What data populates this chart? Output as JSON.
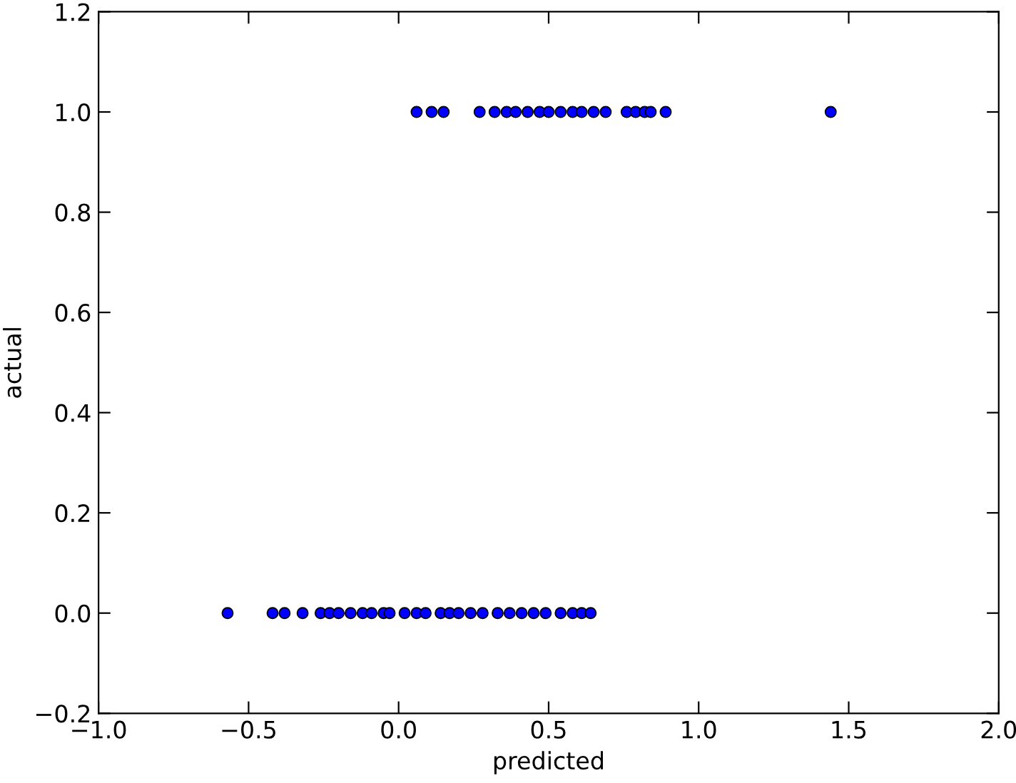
{
  "chart_data": {
    "type": "scatter",
    "xlabel": "predicted",
    "ylabel": "actual",
    "series": [
      {
        "color": "#0000ff",
        "x": [
          0.06,
          0.11,
          0.15,
          0.27,
          0.32,
          0.36,
          0.39,
          0.43,
          0.47,
          0.5,
          0.54,
          0.58,
          0.61,
          0.65,
          0.69,
          0.76,
          0.79,
          0.82,
          0.84,
          0.89,
          1.44
        ],
        "values": [
          1,
          1,
          1,
          1,
          1,
          1,
          1,
          1,
          1,
          1,
          1,
          1,
          1,
          1,
          1,
          1,
          1,
          1,
          1,
          1,
          1
        ]
      },
      {
        "color": "#0000ff",
        "x": [
          -0.57,
          -0.42,
          -0.38,
          -0.32,
          -0.26,
          -0.23,
          -0.2,
          -0.16,
          -0.12,
          -0.09,
          -0.05,
          -0.03,
          0.02,
          0.06,
          0.09,
          0.14,
          0.17,
          0.2,
          0.24,
          0.28,
          0.33,
          0.37,
          0.41,
          0.45,
          0.49,
          0.54,
          0.58,
          0.61,
          0.64
        ],
        "values": [
          0,
          0,
          0,
          0,
          0,
          0,
          0,
          0,
          0,
          0,
          0,
          0,
          0,
          0,
          0,
          0,
          0,
          0,
          0,
          0,
          0,
          0,
          0,
          0,
          0,
          0,
          0,
          0,
          0
        ]
      }
    ],
    "xlim": [
      -1.0,
      2.0
    ],
    "xticks": [
      {
        "value": -1,
        "label": "−1.0"
      },
      -0.5,
      {
        "value": 0,
        "label": "0.0"
      },
      0.5,
      {
        "value": 1,
        "label": "1.0"
      },
      1.5,
      {
        "value": 2,
        "label": "2.0"
      }
    ],
    "ylim": [
      -0.2,
      1.2
    ],
    "yticks": [
      -0.2,
      {
        "value": 0,
        "label": "0.0"
      },
      0.2,
      0.4,
      0.6,
      0.8,
      {
        "value": 1,
        "label": "1.0"
      },
      1.2
    ],
    "marker": "circle",
    "grid": false
  }
}
